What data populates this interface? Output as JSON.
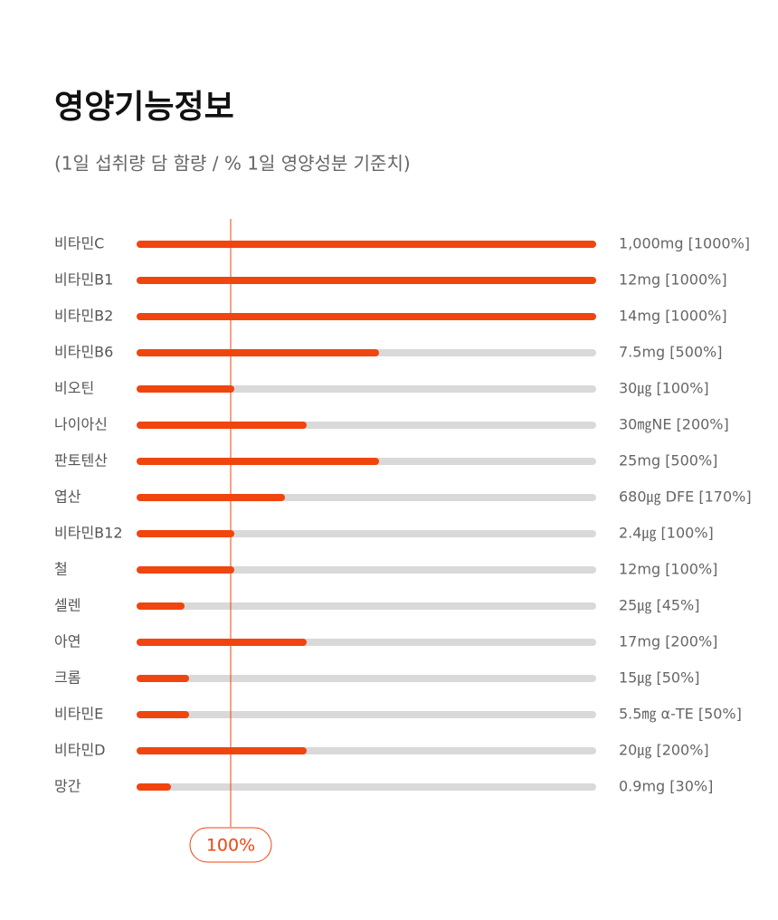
{
  "chart_data": {
    "type": "bar",
    "title": "영양기능정보",
    "subtitle": "(1일 섭취량 담 함량 / % 1일 영양성분 기준치)",
    "categories": [
      "비타민C",
      "비타민B1",
      "비타민B2",
      "비타민B6",
      "비오틴",
      "나이아신",
      "판토텐산",
      "엽산",
      "비타민B12",
      "철",
      "셀렌",
      "아연",
      "크롬",
      "비타민E",
      "비타민D",
      "망간"
    ],
    "values": [
      1000,
      1000,
      1000,
      500,
      100,
      200,
      500,
      170,
      100,
      100,
      45,
      200,
      50,
      50,
      200,
      30
    ],
    "value_labels": [
      "1,000mg [1000%]",
      "12mg [1000%]",
      "14mg [1000%]",
      "7.5mg [500%]",
      "30㎍ [100%]",
      "30㎎NE [200%]",
      "25mg [500%]",
      "680㎍ DFE [170%]",
      "2.4㎍ [100%]",
      "12mg [100%]",
      "25㎍ [45%]",
      "17mg [200%]",
      "15㎍ [50%]",
      "5.5㎎ α-TE [50%]",
      "20㎍ [200%]",
      "0.9mg [30%]"
    ],
    "color": "#f0450f",
    "track_color": "#d9d9d9",
    "reference": {
      "value": 100,
      "label": "100%"
    }
  }
}
